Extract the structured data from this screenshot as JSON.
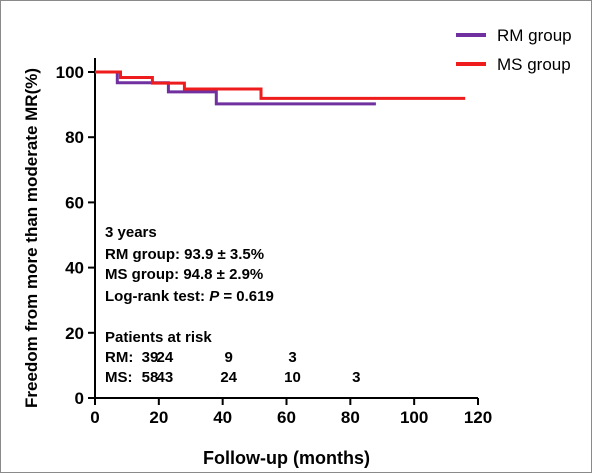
{
  "chart_data": {
    "type": "line",
    "subtype": "kaplan-meier step curve",
    "xlabel": "Follow-up (months)",
    "ylabel": "Freedom from more than moderate MR(%)",
    "xlim": [
      0,
      120
    ],
    "ylim": [
      0,
      100
    ],
    "x_ticks": [
      "0",
      "20",
      "40",
      "60",
      "80",
      "100",
      "120"
    ],
    "y_ticks": [
      "0",
      "20",
      "40",
      "60",
      "80",
      "100"
    ],
    "grid": false,
    "legend_position": "top-right",
    "series": [
      {
        "name": "RM group",
        "color": "#7030a0",
        "points": [
          [
            0,
            100
          ],
          [
            7,
            100
          ],
          [
            7,
            96.7
          ],
          [
            23,
            96.7
          ],
          [
            23,
            93.9
          ],
          [
            38,
            93.9
          ],
          [
            38,
            90.2
          ],
          [
            88,
            90.2
          ]
        ]
      },
      {
        "name": "MS group",
        "color": "#ee1c1c",
        "points": [
          [
            0,
            100
          ],
          [
            8,
            100
          ],
          [
            8,
            98.3
          ],
          [
            18,
            98.3
          ],
          [
            18,
            96.6
          ],
          [
            28,
            96.6
          ],
          [
            28,
            94.8
          ],
          [
            52,
            94.8
          ],
          [
            52,
            91.9
          ],
          [
            116,
            91.9
          ]
        ]
      }
    ],
    "annotations": {
      "survival_title": "3 years",
      "rm_line": "RM group: 93.9 ± 3.5%",
      "ms_line": "MS group: 94.8 ± 2.9%",
      "logrank_label": "Log-rank test: ",
      "logrank_p": "P",
      "logrank_value": " = 0.619"
    },
    "risk_table": {
      "title": "Patients at risk",
      "x_positions": [
        0,
        20,
        40,
        60,
        80,
        100
      ],
      "rows": [
        {
          "label": "RM:",
          "values": [
            "39",
            "24",
            "9",
            "3"
          ]
        },
        {
          "label": "MS:",
          "values": [
            "58",
            "43",
            "24",
            "10",
            "3"
          ]
        }
      ]
    }
  }
}
